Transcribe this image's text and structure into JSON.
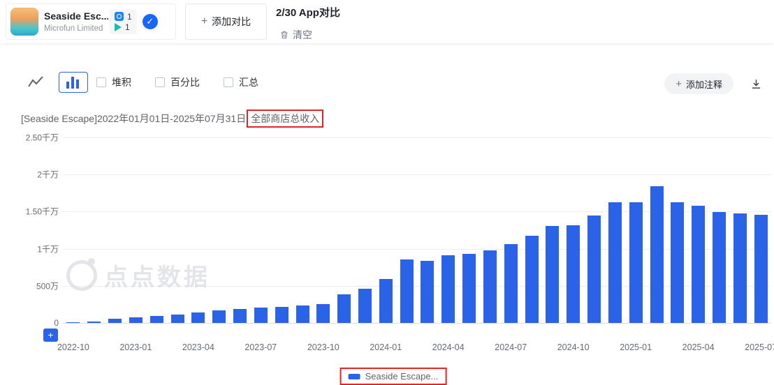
{
  "header": {
    "app": {
      "name": "Seaside Esc...",
      "developer": "Microfun Limited",
      "ios_count": "1",
      "android_count": "1"
    },
    "add_compare_label": "添加对比",
    "compare_count": "2/30 App对比",
    "clear_label": "清空"
  },
  "toolbar": {
    "checkboxes": [
      {
        "label": "堆积",
        "checked": false
      },
      {
        "label": "百分比",
        "checked": false
      },
      {
        "label": "汇总",
        "checked": false
      }
    ],
    "add_annotation_label": "添加注释"
  },
  "chart": {
    "title_main": "[Seaside Escape]2022年01月01日-2025年07月31日",
    "title_highlight": "全部商店总收入",
    "watermark": "点点数据",
    "legend_label": "Seaside Escape...",
    "zoom_button_label": "+"
  },
  "colors": {
    "bar_blue": "#2a62e8",
    "highlight_red": "#e12525",
    "check_blue": "#1766ff"
  },
  "chart_data": {
    "type": "bar",
    "title": "[Seaside Escape]2022年01月01日-2025年07月31日全部商店总收入",
    "unit": "万",
    "x": [
      "2022-10",
      "2022-11",
      "2022-12",
      "2023-01",
      "2023-02",
      "2023-03",
      "2023-04",
      "2023-05",
      "2023-06",
      "2023-07",
      "2023-08",
      "2023-09",
      "2023-10",
      "2023-11",
      "2023-12",
      "2024-01",
      "2024-02",
      "2024-03",
      "2024-04",
      "2024-05",
      "2024-06",
      "2024-07",
      "2024-08",
      "2024-09",
      "2024-10",
      "2024-11",
      "2024-12",
      "2025-01",
      "2025-02",
      "2025-03",
      "2025-04",
      "2025-05",
      "2025-06",
      "2025-07"
    ],
    "values": [
      5,
      20,
      60,
      80,
      95,
      115,
      145,
      165,
      185,
      205,
      220,
      235,
      255,
      390,
      465,
      590,
      855,
      835,
      915,
      930,
      975,
      1065,
      1175,
      1305,
      1320,
      1450,
      1630,
      1630,
      1840,
      1630,
      1580,
      1490,
      1480,
      1460
    ],
    "series": [
      {
        "name": "Seaside Escape...",
        "color": "#2a62e8"
      }
    ],
    "y_ticks": [
      "2.50千万",
      "2千万",
      "1.50千万",
      "1千万",
      "500万",
      "0"
    ],
    "x_tick_labels": [
      "2022-10",
      "2023-01",
      "2023-04",
      "2023-07",
      "2023-10",
      "2024-01",
      "2024-04",
      "2024-07",
      "2024-10",
      "2025-01",
      "2025-04",
      "2025-07"
    ],
    "x_tick_step": 3,
    "ylim": [
      0,
      2500
    ],
    "grid": true,
    "legend_position": "bottom",
    "xlabel": "",
    "ylabel": ""
  }
}
